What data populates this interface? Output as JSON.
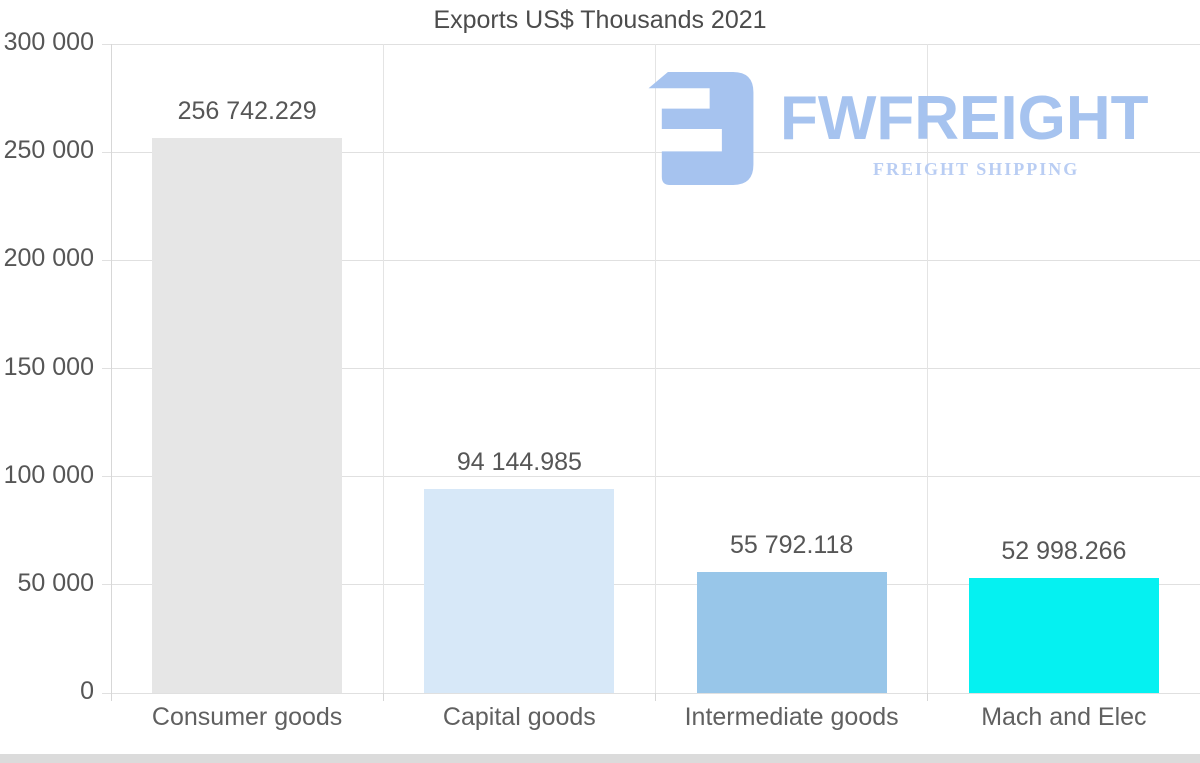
{
  "chart_data": {
    "type": "bar",
    "title": "Exports US$ Thousands 2021",
    "categories": [
      "Consumer goods",
      "Capital goods",
      "Intermediate goods",
      "Mach and Elec"
    ],
    "values": [
      256742.229,
      94144.985,
      55792.118,
      52998.266
    ],
    "value_labels": [
      "256 742.229",
      "94 144.985",
      "55 792.118",
      "52 998.266"
    ],
    "bar_colors": [
      "#e6e6e6",
      "#d7e8f8",
      "#98c6e9",
      "#05f1f1"
    ],
    "xlabel": "",
    "ylabel": "",
    "ylim": [
      0,
      300000
    ],
    "ytick_step": 50000,
    "ytick_labels": [
      "0",
      "50 000",
      "100 000",
      "150 000",
      "200 000",
      "250 000",
      "300 000"
    ],
    "grid": "horizontal-lines-and-vertical-band-separators",
    "legend": "none"
  },
  "logo": {
    "wordmark": "FWFREIGHT",
    "tagline": "FREIGHT SHIPPING",
    "mark_color": "#a6c3ef",
    "wordmark_color": "#a6c3ef",
    "tagline_color": "#b9cdf3"
  },
  "colors": {
    "background": "#ffffff",
    "title_text": "#4c4c4c",
    "axis_text": "#565656",
    "gridline": "#e0e0e0",
    "bottom_strip": "#dbdbdb"
  }
}
